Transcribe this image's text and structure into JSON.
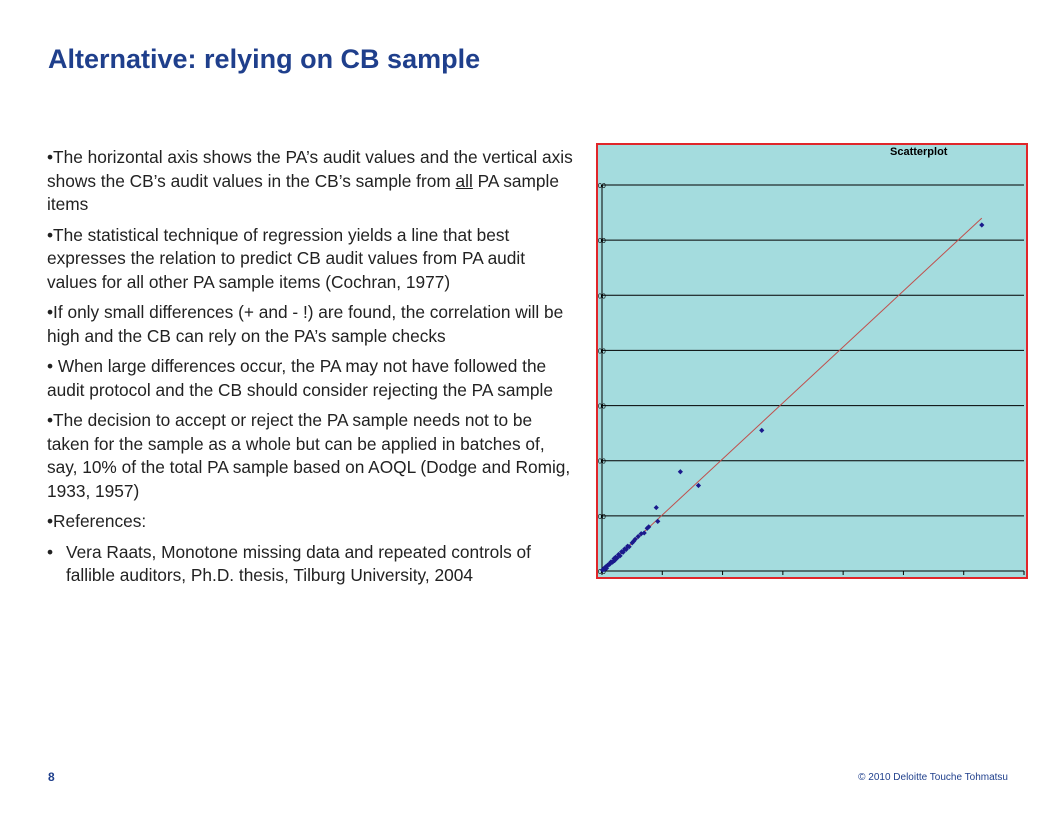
{
  "slide": {
    "title": "Alternative: relying on CB sample",
    "page_number": "8",
    "copyright": "© 2010 Deloitte Touche Tohmatsu"
  },
  "bullets": [
    {
      "pre": "•The horizontal axis shows the PA’s audit values and the vertical axis shows the CB’s audit values in the CB’s sample from ",
      "underlined": "all",
      "post": " PA sample items"
    },
    {
      "text": "•The statistical technique of regression yields a line that best expresses the relation to predict CB audit values from PA audit values for all other PA sample items (Cochran, 1977)"
    },
    {
      "text": "•If only small differences (+ and - !) are found, the correlation will be high and the CB can rely on the PA’s sample checks"
    },
    {
      "text": "• When large differences occur, the PA may not have followed the audit protocol and the CB should consider rejecting the PA sample"
    },
    {
      "text": "•The decision to accept or reject the PA sample needs not to be taken for the sample as a whole but can be applied in batches of, say, 10% of the total PA sample based on AOQL (Dodge and Romig, 1933, 1957)"
    },
    {
      "text": "•References:"
    }
  ],
  "references": [
    {
      "bullet": "•",
      "text": "Vera Raats, Monotone missing data and repeated controls of fallible auditors, Ph.D. thesis, Tilburg University, 2004"
    }
  ],
  "chart_data": {
    "type": "scatter",
    "title": "Scatterplot",
    "xlim": [
      0,
      14
    ],
    "ylim": [
      0,
      14
    ],
    "grid": true,
    "ytick_labels": [
      "00",
      "00",
      "00",
      "00",
      "00",
      "00",
      "00",
      "00"
    ],
    "colors": {
      "background": "#a4dcde",
      "border": "#e0262a",
      "points": "#1a1a8c",
      "trend": "#c0504d",
      "grid": "#000000"
    },
    "points": [
      [
        0.02,
        0.03
      ],
      [
        0.05,
        0.08
      ],
      [
        0.08,
        0.06
      ],
      [
        0.1,
        0.12
      ],
      [
        0.12,
        0.15
      ],
      [
        0.15,
        0.1
      ],
      [
        0.18,
        0.2
      ],
      [
        0.2,
        0.22
      ],
      [
        0.25,
        0.24
      ],
      [
        0.28,
        0.3
      ],
      [
        0.3,
        0.33
      ],
      [
        0.35,
        0.32
      ],
      [
        0.4,
        0.45
      ],
      [
        0.42,
        0.38
      ],
      [
        0.45,
        0.5
      ],
      [
        0.5,
        0.47
      ],
      [
        0.55,
        0.6
      ],
      [
        0.6,
        0.55
      ],
      [
        0.65,
        0.7
      ],
      [
        0.7,
        0.68
      ],
      [
        0.75,
        0.8
      ],
      [
        0.8,
        0.78
      ],
      [
        0.85,
        0.9
      ],
      [
        0.9,
        0.88
      ],
      [
        1.0,
        1.02
      ],
      [
        1.05,
        1.08
      ],
      [
        1.1,
        1.15
      ],
      [
        1.2,
        1.25
      ],
      [
        1.3,
        1.35
      ],
      [
        1.4,
        1.38
      ],
      [
        1.5,
        1.55
      ],
      [
        1.55,
        1.6
      ],
      [
        1.8,
        2.3
      ],
      [
        1.85,
        1.8
      ],
      [
        2.6,
        3.6
      ],
      [
        3.2,
        3.1
      ],
      [
        5.3,
        5.1
      ],
      [
        12.6,
        12.55
      ]
    ],
    "trendline": [
      [
        0,
        0
      ],
      [
        12.6,
        12.8
      ]
    ]
  }
}
